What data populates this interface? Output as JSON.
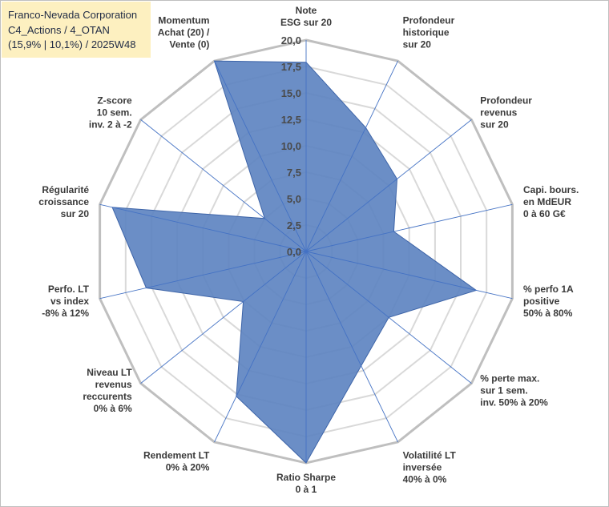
{
  "header": {
    "line1": "Franco-Nevada Corporation",
    "line2": "C4_Actions / 4_OTAN",
    "line3": "(15,9% | 10,1%) / 2025W48"
  },
  "chart_data": {
    "type": "radar",
    "rlim": [
      0,
      20
    ],
    "ticks": [
      "0,0",
      "2,5",
      "5,0",
      "7,5",
      "10,0",
      "12,5",
      "15,0",
      "17,5",
      "20,0"
    ],
    "grid": true,
    "axes": [
      {
        "label": [
          "Note",
          "ESG sur 20"
        ],
        "value": 17.9
      },
      {
        "label": [
          "Profondeur",
          "historique",
          "sur 20"
        ],
        "value": 13.0
      },
      {
        "label": [
          "Profondeur",
          "revenus",
          "sur 20"
        ],
        "value": 11.0
      },
      {
        "label": [
          "Capi. bours.",
          "en MdEUR",
          "0 à 60 G€"
        ],
        "value": 8.5
      },
      {
        "label": [
          "% perfo 1A",
          "positive",
          "50% à 80%"
        ],
        "value": 16.5
      },
      {
        "label": [
          "% perte max.",
          "sur 1 sem.",
          "inv. 50% à 20%"
        ],
        "value": 10.0
      },
      {
        "label": [
          "Volatilité LT",
          "inversée",
          "40% à 0%"
        ],
        "value": 12.0
      },
      {
        "label": [
          "Ratio Sharpe",
          "0 à 1"
        ],
        "value": 20.0
      },
      {
        "label": [
          "Rendement LT",
          "0% à 20%"
        ],
        "value": 15.2
      },
      {
        "label": [
          "Niveau LT",
          "revenus",
          "reccurents",
          "0% à 6%"
        ],
        "value": 7.6
      },
      {
        "label": [
          "Perfo. LT",
          "vs index",
          "-8% à 12%"
        ],
        "value": 15.5
      },
      {
        "label": [
          "Régularité",
          "croissance",
          "sur 20"
        ],
        "value": 18.8
      },
      {
        "label": [
          "Z-score",
          "10 sem.",
          "inv. 2 à -2"
        ],
        "value": 5.0
      },
      {
        "label": [
          "Momentum",
          "Achat (20) /",
          "Vente (0)"
        ],
        "value": 20.0
      }
    ],
    "series_color": "#5b82c0",
    "series_edge": "#3d64a8",
    "axis_line_color": "#4472c4",
    "grid_color": "#d9d9d9",
    "outer_ring_color": "#bfbfbf"
  }
}
